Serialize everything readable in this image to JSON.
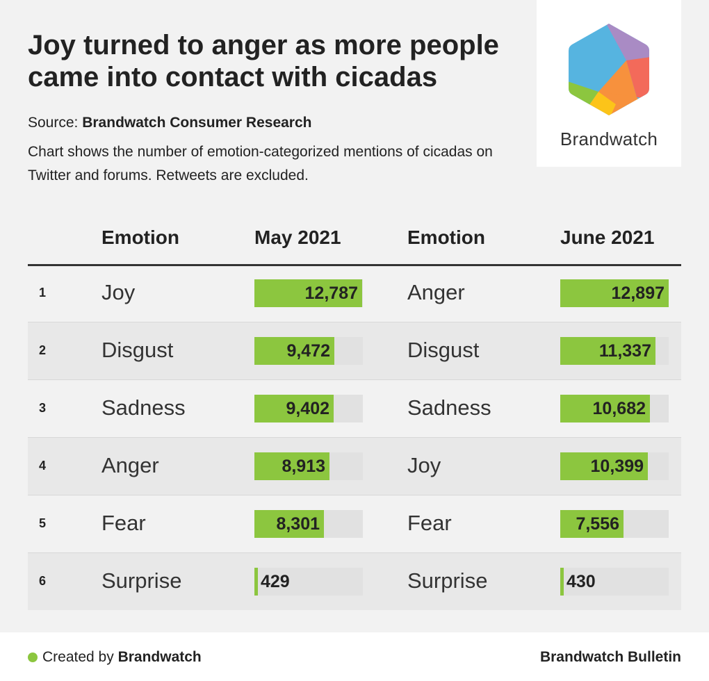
{
  "title": "Joy turned to anger as more people came into contact with cicadas",
  "source_label": "Source:",
  "source_name": "Brandwatch Consumer Research",
  "description": "Chart shows the number of emotion-categorized mentions of cicadas on Twitter and forums. Retweets are excluded.",
  "logo_text": "Brandwatch",
  "colors": {
    "bar": "#8cc63f",
    "track": "#e1e1e1"
  },
  "chart_data": {
    "type": "table",
    "title": "Joy turned to anger as more people came into contact with cicadas",
    "columns": [
      "Emotion",
      "May 2021",
      "Emotion",
      "June 2021"
    ],
    "max_value": 12897,
    "rows": [
      {
        "rank": "1",
        "may_emotion": "Joy",
        "may_value": 12787,
        "may_label": "12,787",
        "june_emotion": "Anger",
        "june_value": 12897,
        "june_label": "12,897"
      },
      {
        "rank": "2",
        "may_emotion": "Disgust",
        "may_value": 9472,
        "may_label": "9,472",
        "june_emotion": "Disgust",
        "june_value": 11337,
        "june_label": "11,337"
      },
      {
        "rank": "3",
        "may_emotion": "Sadness",
        "may_value": 9402,
        "may_label": "9,402",
        "june_emotion": "Sadness",
        "june_value": 10682,
        "june_label": "10,682"
      },
      {
        "rank": "4",
        "may_emotion": "Anger",
        "may_value": 8913,
        "may_label": "8,913",
        "june_emotion": "Joy",
        "june_value": 10399,
        "june_label": "10,399"
      },
      {
        "rank": "5",
        "may_emotion": "Fear",
        "may_value": 8301,
        "may_label": "8,301",
        "june_emotion": "Fear",
        "june_value": 7556,
        "june_label": "7,556"
      },
      {
        "rank": "6",
        "may_emotion": "Surprise",
        "may_value": 429,
        "may_label": "429",
        "june_emotion": "Surprise",
        "june_value": 430,
        "june_label": "430"
      }
    ]
  },
  "footer": {
    "created_prefix": "Created by",
    "created_by": "Brandwatch",
    "bulletin": "Brandwatch Bulletin"
  }
}
